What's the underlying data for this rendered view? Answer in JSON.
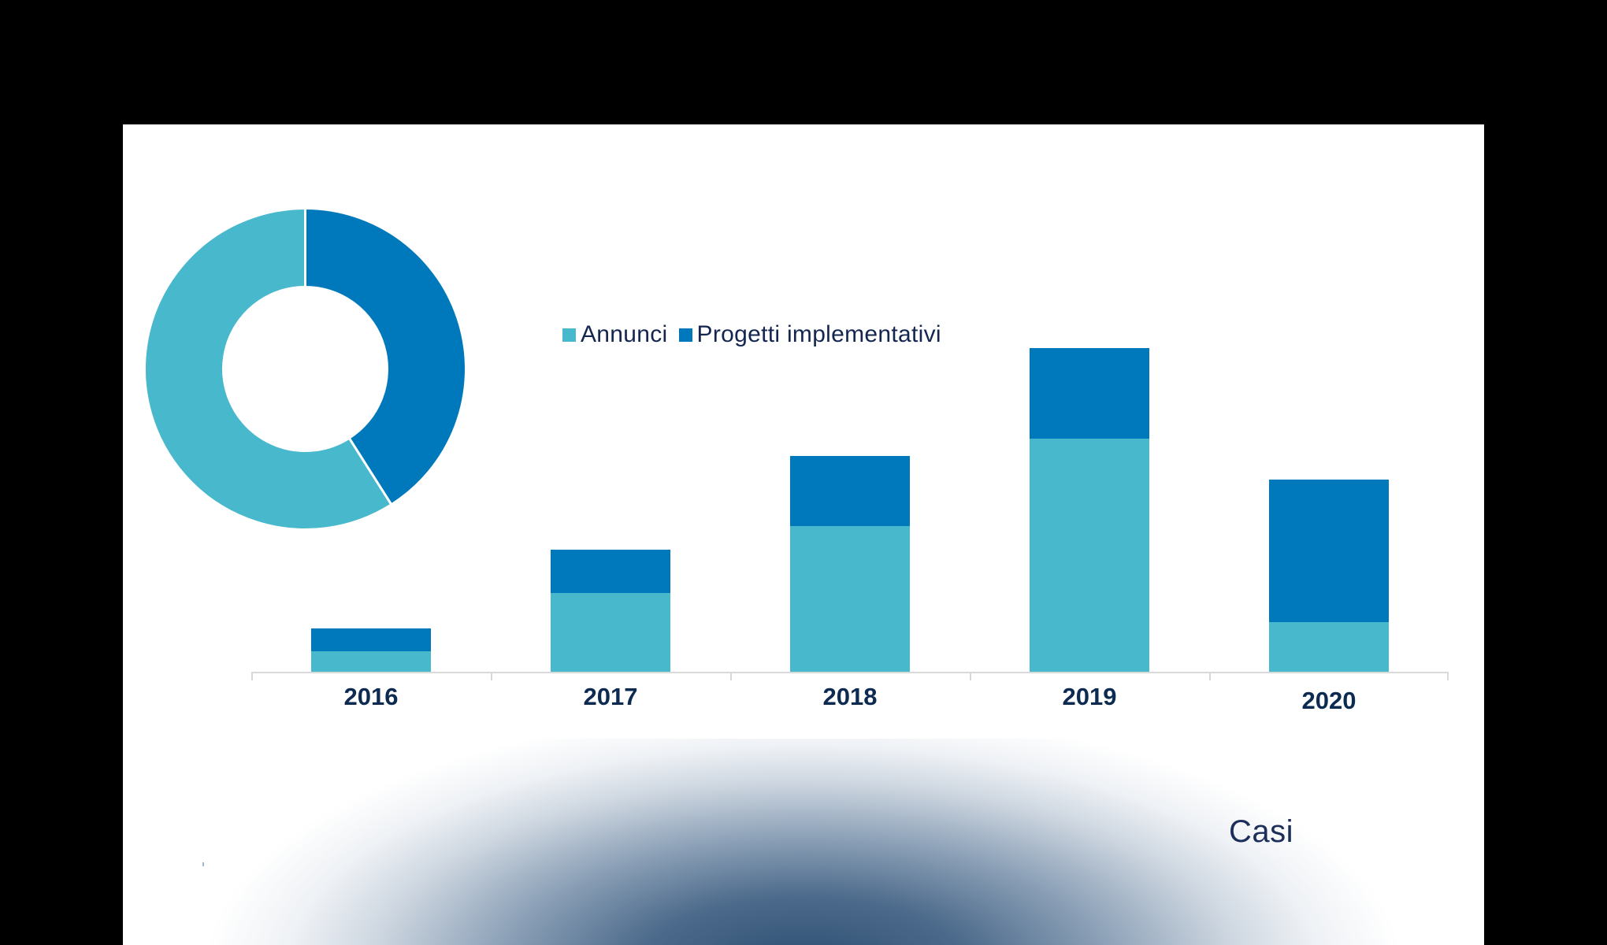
{
  "colors": {
    "annunci": "#48b8cc",
    "progetti": "#0079bc",
    "text_dark": "#0d2a50",
    "background": "#ffffff",
    "frame": "#000000",
    "axis": "#d9d9d9",
    "glow_dark": "#2c4e72"
  },
  "legend": {
    "items": [
      {
        "label": "Annunci",
        "color": "#48b8cc"
      },
      {
        "label": "Progetti implementativi",
        "color": "#0079bc"
      }
    ]
  },
  "footer_label": "Casi",
  "chart_data": [
    {
      "type": "bar",
      "stacked": true,
      "title": "",
      "xlabel": "",
      "ylabel": "",
      "categories": [
        "2016",
        "2017",
        "2018",
        "2019",
        "2020"
      ],
      "series": [
        {
          "name": "Annunci",
          "color": "#48b8cc",
          "values": [
            7,
            27,
            50,
            80,
            17
          ]
        },
        {
          "name": "Progetti implementativi",
          "color": "#0079bc",
          "values": [
            8,
            15,
            24,
            31,
            49
          ]
        }
      ],
      "ylim": [
        0,
        145
      ],
      "y_axis_visible": false,
      "grid": false,
      "legend_position": "top",
      "note": "No y-axis shown; values estimated from relative bar heights"
    },
    {
      "type": "pie",
      "donut": true,
      "labels": [
        "Annunci",
        "Progetti implementativi"
      ],
      "values": [
        59,
        41
      ],
      "colors": [
        "#48b8cc",
        "#0079bc"
      ],
      "start_angle": "12 o'clock, clockwise from Progetti implementativi"
    }
  ]
}
